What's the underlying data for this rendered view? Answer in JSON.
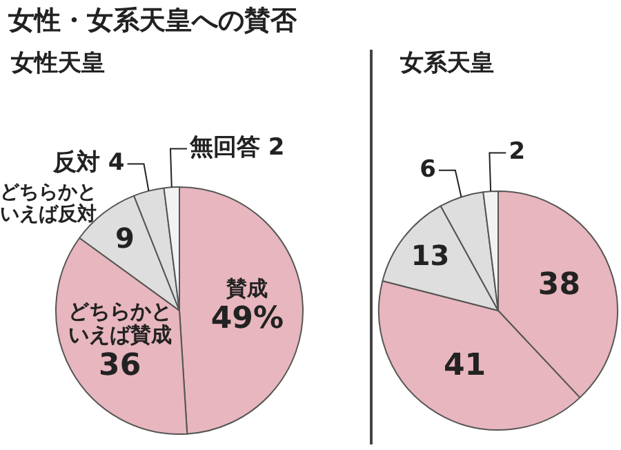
{
  "chart_data": [
    {
      "type": "pie",
      "title": "女性・女系天皇への賛否",
      "subtitle": "女性天皇",
      "categories": [
        "賛成",
        "どちらかといえば賛成",
        "どちらかといえば反対",
        "反対",
        "無回答"
      ],
      "values": [
        49,
        36,
        9,
        4,
        2
      ],
      "colors": [
        "#e8b6be",
        "#e8b6be",
        "#dedede",
        "#dedede",
        "#f2f2f2"
      ],
      "value_labels": [
        "49%",
        "36",
        "9",
        "4",
        "2"
      ]
    },
    {
      "type": "pie",
      "title": "女系天皇",
      "categories": [
        null,
        null,
        null,
        null,
        null
      ],
      "values": [
        38,
        41,
        13,
        6,
        2
      ],
      "colors": [
        "#e8b6be",
        "#e8b6be",
        "#dedede",
        "#dedede",
        "#f2f2f2"
      ],
      "data_labels": true
    }
  ]
}
